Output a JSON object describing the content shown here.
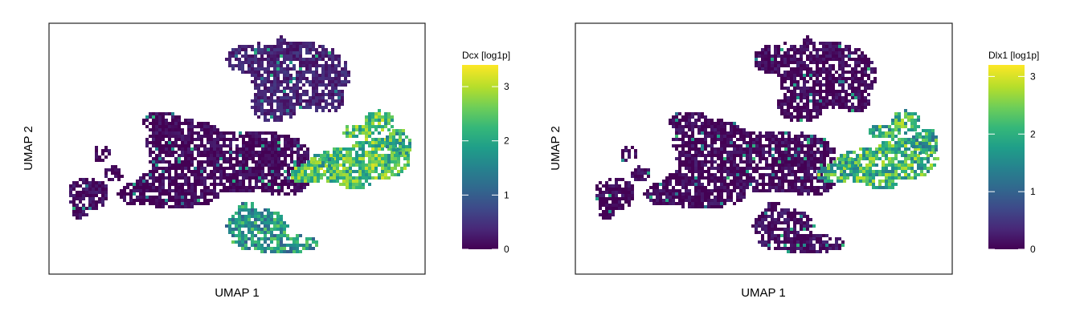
{
  "chart_data": [
    {
      "type": "heatmap",
      "xlabel": "UMAP 1",
      "ylabel": "UMAP 2",
      "colorbar": {
        "title": "Dcx [log1p]",
        "range": [
          0,
          3.4
        ],
        "ticks": [
          0,
          1,
          2,
          3
        ]
      },
      "colormap": "viridis",
      "regions": [
        {
          "name": "top cluster",
          "level": 0.35
        },
        {
          "name": "central body",
          "level": 0.05
        },
        {
          "name": "right lobe",
          "level": 2.4
        },
        {
          "name": "right tail",
          "level": 2.2
        },
        {
          "name": "bottom lobe",
          "level": 1.8
        },
        {
          "name": "left arm",
          "level": 0.1
        }
      ]
    },
    {
      "type": "heatmap",
      "xlabel": "UMAP 1",
      "ylabel": "UMAP 2",
      "colorbar": {
        "title": "Dlx1 [log1p]",
        "range": [
          0,
          3.2
        ],
        "ticks": [
          0,
          1,
          2,
          3
        ]
      },
      "colormap": "viridis",
      "regions": [
        {
          "name": "top cluster",
          "level": 0.05
        },
        {
          "name": "central body",
          "level": 0.05
        },
        {
          "name": "right lobe",
          "level": 2.1
        },
        {
          "name": "right tail",
          "level": 1.9
        },
        {
          "name": "bottom lobe",
          "level": 0.1
        },
        {
          "name": "left arm",
          "level": 0.05
        }
      ]
    }
  ],
  "colors": {
    "viridis": [
      "#440154",
      "#482878",
      "#3e4989",
      "#31688e",
      "#26828e",
      "#1f9e89",
      "#35b779",
      "#6ece58",
      "#b5de2b",
      "#fde725"
    ],
    "frame": "#222222"
  }
}
